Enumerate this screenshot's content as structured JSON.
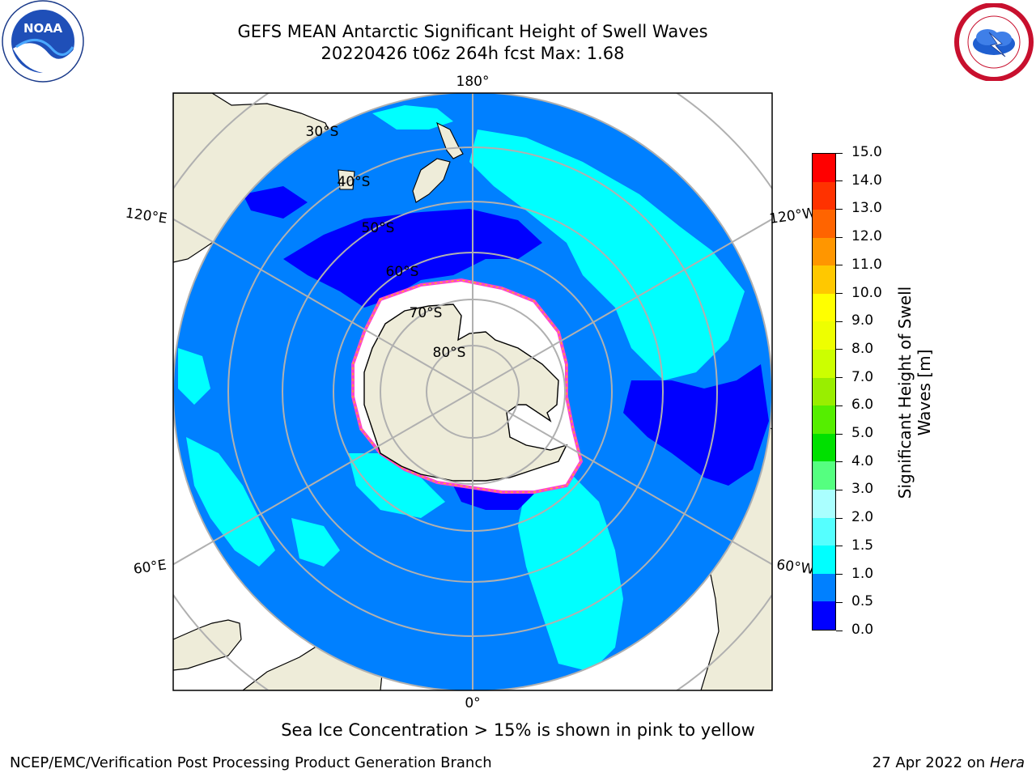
{
  "title": {
    "line1": "GEFS MEAN Antarctic Significant Height of Swell Waves",
    "line2": "20220426 t06z 264h fcst   Max: 1.68"
  },
  "logos": {
    "left": "noaa-logo",
    "right": "national-weather-service-logo"
  },
  "map": {
    "projection": "south-polar-stereographic",
    "lon_labels": [
      "180°",
      "120°E",
      "120°W",
      "60°E",
      "60°W",
      "0°"
    ],
    "lat_labels": [
      "30°S",
      "40°S",
      "50°S",
      "60°S",
      "70°S",
      "80°S"
    ],
    "colors": {
      "land": "#eeecd9",
      "sea_ice": "#ffffff",
      "ice_edge": "#ff44cc",
      "grid": "#b0b0b0"
    }
  },
  "colorbar": {
    "label": "Significant Height of Swell Waves [m]",
    "label_line1": "Significant Height of Swell",
    "label_line2": "Waves [m]",
    "ticks": [
      "0.0",
      "0.5",
      "1.0",
      "1.5",
      "2.0",
      "3.0",
      "4.0",
      "5.0",
      "6.0",
      "7.0",
      "8.0",
      "9.0",
      "10.0",
      "11.0",
      "12.0",
      "13.0",
      "14.0",
      "15.0"
    ],
    "colors": [
      "#0000ff",
      "#0080ff",
      "#00ffff",
      "#55ffff",
      "#aaffff",
      "#55ff80",
      "#00e000",
      "#55ee00",
      "#99ee00",
      "#ccff00",
      "#eeff00",
      "#ffff00",
      "#ffc800",
      "#ff9600",
      "#ff6400",
      "#ff3200",
      "#ff0000"
    ]
  },
  "note": "Sea Ice Concentration > 15% is shown in pink to yellow",
  "footer": {
    "credit": "NCEP/EMC/Verification Post Processing Product Generation Branch",
    "date": "27 Apr 2022 on",
    "host": "Hera"
  }
}
